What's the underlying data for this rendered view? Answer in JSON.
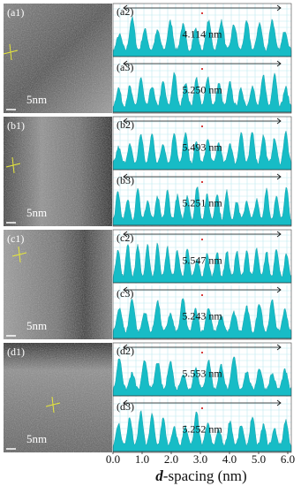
{
  "panels": [
    {
      "image": {
        "label": "(a1)",
        "scale": "5nm"
      },
      "profiles": [
        {
          "label": "(a2)",
          "measurement": "4.114 nm"
        },
        {
          "label": "(a3)",
          "measurement": "5.250 nm"
        }
      ]
    },
    {
      "image": {
        "label": "(b1)",
        "scale": "5nm"
      },
      "profiles": [
        {
          "label": "(b2)",
          "measurement": "5.493 nm"
        },
        {
          "label": "(b3)",
          "measurement": "5.251 nm"
        }
      ]
    },
    {
      "image": {
        "label": "(c1)",
        "scale": "5nm"
      },
      "profiles": [
        {
          "label": "(c2)",
          "measurement": "5.547 nm"
        },
        {
          "label": "(c3)",
          "measurement": "5.243 nm"
        }
      ]
    },
    {
      "image": {
        "label": "(d1)",
        "scale": "5nm"
      },
      "profiles": [
        {
          "label": "(d2)",
          "measurement": "5.553 nm"
        },
        {
          "label": "(d3)",
          "measurement": "5.252 nm"
        }
      ]
    }
  ],
  "x_axis": {
    "label_italic": "d",
    "label": "-spacing (nm)",
    "xlim": [
      0,
      6
    ],
    "ticks": [
      {
        "value": 0,
        "label": "0.0"
      },
      {
        "value": 1,
        "label": "1.0"
      },
      {
        "value": 2,
        "label": "2.0"
      },
      {
        "value": 3,
        "label": "3.0"
      },
      {
        "value": 4,
        "label": "4.0"
      },
      {
        "value": 5,
        "label": "5.0"
      },
      {
        "value": 6,
        "label": "6.0"
      }
    ]
  }
}
